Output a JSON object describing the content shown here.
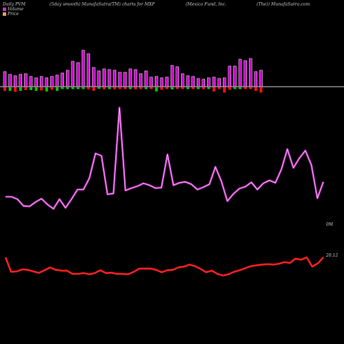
{
  "header": {
    "left": "Daily PVM",
    "mid": "(5day smooth) MunafaSutra(TM) charts for MXF",
    "company": "(Mexico  Fund,  Inc.",
    "right": "(The)) MunafaSutra.com"
  },
  "legend": [
    {
      "label": "Volume",
      "color": "#cc33cc"
    },
    {
      "label": "Price",
      "color": "#e8a060"
    }
  ],
  "labels": {
    "volume_end": "0M",
    "price_end": "20.12"
  },
  "colors": {
    "background": "#000000",
    "baseline": "#dddddd",
    "volume_bar": "#cc00cc",
    "volume_bar_edge": "#ffffff",
    "volume_up": "#00cc00",
    "volume_down": "#ff1111",
    "volume_line": "#cc33cc",
    "price_line": "#ff2222"
  },
  "chart_data": {
    "type": "line",
    "series": [
      {
        "name": "Volume",
        "values": [
          12.0,
          12.0,
          11.5,
          10.1,
          10.0,
          10.9,
          11.6,
          10.4,
          9.5,
          11.5,
          9.7,
          11.5,
          13.5,
          13.5,
          15.9,
          21.0,
          20.5,
          12.5,
          12.7,
          30.5,
          13.3,
          13.8,
          14.2,
          14.8,
          14.4,
          13.8,
          13.9,
          20.8,
          14.4,
          14.9,
          15.1,
          14.6,
          13.5,
          14.0,
          14.6,
          18.2,
          15.2,
          11.1,
          12.6,
          13.7,
          14.1,
          15.0,
          13.5,
          14.8,
          15.4,
          14.9,
          17.7,
          21.9,
          18.0,
          20.0,
          21.6,
          18.6,
          11.7,
          15.1
        ],
        "volume_bars": [
          2.2,
          1.8,
          1.6,
          1.8,
          1.9,
          1.5,
          1.3,
          1.5,
          1.3,
          1.5,
          1.7,
          2.0,
          2.4,
          3.7,
          3.5,
          5.3,
          4.8,
          2.8,
          2.3,
          2.6,
          2.5,
          2.4,
          2.1,
          2.1,
          2.6,
          2.5,
          1.9,
          2.3,
          1.4,
          1.5,
          1.3,
          1.4,
          3.1,
          2.9,
          1.9,
          1.6,
          1.5,
          1.2,
          1.1,
          1.3,
          1.4,
          1.2,
          1.3,
          3.0,
          3.0,
          4.0,
          3.8,
          4.1,
          2.2,
          2.4
        ],
        "volume_ticks": [
          -1.0,
          1.0,
          -1.3,
          1.0,
          -0.8,
          0.8,
          1.0,
          -0.9,
          1.2,
          -0.7,
          1.0,
          0.5,
          0.5,
          0.5,
          0.5,
          0.5,
          -0.6,
          -1.0,
          0.4,
          -0.6,
          0.5,
          -0.6,
          -0.5,
          -0.5,
          0.5,
          -0.6,
          -0.5,
          0.5,
          -0.5,
          1.2,
          -0.7,
          -0.5,
          0.6,
          -0.5,
          -0.5,
          0.5,
          -0.5,
          0.5,
          -0.5,
          0.5,
          -1.2,
          -0.5,
          -1.5,
          -0.7,
          0.5,
          0.5,
          -0.5,
          -0.5,
          -1.0,
          -1.5
        ]
      },
      {
        "name": "Price",
        "values": [
          20.12,
          19.4,
          19.42,
          19.52,
          19.5,
          19.42,
          19.35,
          19.48,
          19.62,
          19.5,
          19.46,
          19.46,
          19.3,
          19.3,
          19.34,
          19.28,
          19.34,
          19.48,
          19.34,
          19.36,
          19.3,
          19.3,
          19.28,
          19.4,
          19.56,
          19.56,
          19.56,
          19.5,
          19.38,
          19.48,
          19.5,
          19.62,
          19.66,
          19.76,
          19.68,
          19.54,
          19.38,
          19.46,
          19.3,
          19.22,
          19.28,
          19.4,
          19.48,
          19.58,
          19.68,
          19.72,
          19.76,
          19.78,
          19.76,
          19.8,
          19.88,
          19.84,
          20.06,
          20.0,
          20.12,
          19.66,
          19.82,
          20.12
        ]
      }
    ],
    "legend": "top-left"
  }
}
